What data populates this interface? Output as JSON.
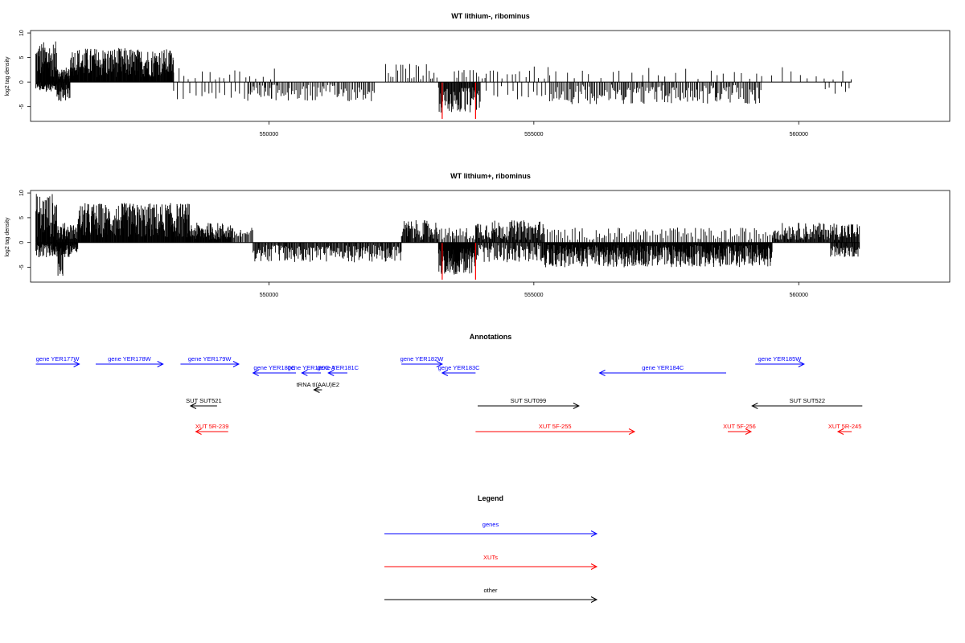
{
  "chart_data": [
    {
      "type": "bar",
      "title": "WT lithium-, ribominus",
      "ylabel": "log2 tag density",
      "xlim": [
        545500,
        562850
      ],
      "ylim": [
        -8,
        10.5
      ],
      "xticks": [
        550000,
        555000,
        560000
      ],
      "xtick_labels": [
        "550000",
        "555000",
        "560000"
      ],
      "yticks": [
        -5,
        0,
        5,
        10
      ],
      "ytick_labels": [
        "-5",
        "0",
        "5",
        "10"
      ],
      "baseline": [
        545600,
        561000
      ],
      "highlight_color": "#ff0000",
      "highlight_bars": [
        {
          "x": 553270,
          "y": -7.5
        },
        {
          "x": 553900,
          "y": -7.5
        }
      ],
      "density_regions": [
        {
          "start": 545600,
          "end": 546000,
          "sign": 1,
          "min": 1,
          "max": 8.3
        },
        {
          "start": 545600,
          "end": 546000,
          "sign": -1,
          "min": 0.3,
          "max": 2
        },
        {
          "start": 546000,
          "end": 546250,
          "sign": -1,
          "min": 0.5,
          "max": 4
        },
        {
          "start": 546000,
          "end": 546400,
          "sign": 1,
          "min": 0.5,
          "max": 3
        },
        {
          "start": 546250,
          "end": 547400,
          "sign": 1,
          "min": 1,
          "max": 7
        },
        {
          "start": 547400,
          "end": 548200,
          "sign": 1,
          "min": 1,
          "max": 6.8
        },
        {
          "start": 548200,
          "end": 550200,
          "sign": 1,
          "min": 0.5,
          "max": 3,
          "step": 110
        },
        {
          "start": 548200,
          "end": 550200,
          "sign": -1,
          "min": 0.5,
          "max": 3.5,
          "step": 90
        },
        {
          "start": 549600,
          "end": 552000,
          "sign": -1,
          "min": 0.5,
          "max": 4,
          "step": 28
        },
        {
          "start": 552200,
          "end": 553200,
          "sign": 1,
          "min": 0.5,
          "max": 3.8,
          "step": 45
        },
        {
          "start": 553200,
          "end": 554000,
          "sign": -1,
          "min": 1,
          "max": 6.5,
          "step": 12
        },
        {
          "start": 553500,
          "end": 554100,
          "sign": 1,
          "min": 0.5,
          "max": 2.5,
          "step": 50
        },
        {
          "start": 554100,
          "end": 555300,
          "sign": 1,
          "min": 0.5,
          "max": 3.2,
          "step": 90
        },
        {
          "start": 554100,
          "end": 555300,
          "sign": -1,
          "min": 0.5,
          "max": 3.5,
          "step": 110
        },
        {
          "start": 555300,
          "end": 559300,
          "sign": -1,
          "min": 0.5,
          "max": 4.5,
          "step": 24
        },
        {
          "start": 555300,
          "end": 559300,
          "sign": 1,
          "min": 0.5,
          "max": 3,
          "step": 180
        },
        {
          "start": 559300,
          "end": 561000,
          "sign": 1,
          "min": 0.5,
          "max": 3.5,
          "step": 170
        },
        {
          "start": 560500,
          "end": 561000,
          "sign": -1,
          "min": 0.5,
          "max": 2.5,
          "step": 90
        }
      ]
    },
    {
      "type": "bar",
      "title": "WT lithium+, ribominus",
      "ylabel": "log2 tag density",
      "xlim": [
        545500,
        562850
      ],
      "ylim": [
        -8,
        10.5
      ],
      "xticks": [
        550000,
        555000,
        560000
      ],
      "xtick_labels": [
        "550000",
        "555000",
        "560000"
      ],
      "yticks": [
        -5,
        0,
        5,
        10
      ],
      "ytick_labels": [
        "-5",
        "0",
        "5",
        "10"
      ],
      "baseline": [
        545600,
        561150
      ],
      "highlight_color": "#ff0000",
      "highlight_bars": [
        {
          "x": 553270,
          "y": -7.5
        },
        {
          "x": 553900,
          "y": -7.5
        }
      ],
      "density_regions": [
        {
          "start": 545600,
          "end": 546000,
          "sign": 1,
          "min": 1,
          "max": 10
        },
        {
          "start": 545600,
          "end": 546400,
          "sign": -1,
          "min": 0.3,
          "max": 3
        },
        {
          "start": 546000,
          "end": 546400,
          "sign": 1,
          "min": 0.5,
          "max": 4
        },
        {
          "start": 546000,
          "end": 546150,
          "sign": -1,
          "min": 1,
          "max": 7
        },
        {
          "start": 546400,
          "end": 548500,
          "sign": 1,
          "min": 1,
          "max": 8
        },
        {
          "start": 548500,
          "end": 549300,
          "sign": 1,
          "min": 0.5,
          "max": 4
        },
        {
          "start": 549300,
          "end": 549700,
          "sign": 1,
          "min": 0.5,
          "max": 3,
          "step": 20
        },
        {
          "start": 549700,
          "end": 552500,
          "sign": -1,
          "min": 0.5,
          "max": 4,
          "step": 14
        },
        {
          "start": 552500,
          "end": 553200,
          "sign": 1,
          "min": 0.5,
          "max": 4.5,
          "step": 12
        },
        {
          "start": 553200,
          "end": 553900,
          "sign": -1,
          "min": 1,
          "max": 6.5,
          "step": 6
        },
        {
          "start": 553200,
          "end": 553900,
          "sign": 1,
          "min": 0.5,
          "max": 3,
          "step": 25
        },
        {
          "start": 553900,
          "end": 555200,
          "sign": 1,
          "min": 0.5,
          "max": 4.5,
          "step": 12
        },
        {
          "start": 553900,
          "end": 555200,
          "sign": -1,
          "min": 0.5,
          "max": 4,
          "step": 16
        },
        {
          "start": 555200,
          "end": 559500,
          "sign": -1,
          "min": 0.5,
          "max": 5,
          "step": 8
        },
        {
          "start": 555200,
          "end": 559500,
          "sign": 1,
          "min": 0.5,
          "max": 3,
          "step": 40
        },
        {
          "start": 559500,
          "end": 561150,
          "sign": 1,
          "min": 0.5,
          "max": 4,
          "step": 12
        },
        {
          "start": 560600,
          "end": 561150,
          "sign": -1,
          "min": 0.5,
          "max": 3,
          "step": 12
        }
      ]
    }
  ],
  "annotations": {
    "title": "Annotations",
    "colors": {
      "gene": "#0000ff",
      "xut": "#ff0000",
      "other": "#000000"
    },
    "items": [
      {
        "label": "gene YER177W",
        "kind": "gene",
        "start": 545600,
        "end": 546420,
        "strand": "+",
        "row": 0
      },
      {
        "label": "gene YER178W",
        "kind": "gene",
        "start": 546730,
        "end": 548000,
        "strand": "+",
        "row": 0
      },
      {
        "label": "gene YER179W",
        "kind": "gene",
        "start": 548330,
        "end": 549430,
        "strand": "+",
        "row": 0
      },
      {
        "label": "gene YER180C",
        "kind": "gene",
        "start": 549700,
        "end": 550510,
        "strand": "-",
        "row": 1
      },
      {
        "label": "gene YER180C-A",
        "kind": "gene",
        "start": 550620,
        "end": 550980,
        "strand": "-",
        "row": 1
      },
      {
        "label": "gene YER181C",
        "kind": "gene",
        "start": 551120,
        "end": 551480,
        "strand": "-",
        "row": 1
      },
      {
        "label": "tRNA tI(AAU)E2",
        "kind": "other",
        "start": 550850,
        "end": 551000,
        "strand": "-",
        "row": 2
      },
      {
        "label": "gene YER182W",
        "kind": "gene",
        "start": 552500,
        "end": 553270,
        "strand": "+",
        "row": 0
      },
      {
        "label": "gene YER183C",
        "kind": "gene",
        "start": 553270,
        "end": 553900,
        "strand": "-",
        "row": 1
      },
      {
        "label": "gene YER184C",
        "kind": "gene",
        "start": 556240,
        "end": 558630,
        "strand": "-",
        "row": 1
      },
      {
        "label": "gene YER185W",
        "kind": "gene",
        "start": 559180,
        "end": 560100,
        "strand": "+",
        "row": 0
      },
      {
        "label": "SUT SUT521",
        "kind": "other",
        "start": 548520,
        "end": 549020,
        "strand": "-",
        "row": 3
      },
      {
        "label": "SUT SUT099",
        "kind": "other",
        "start": 553940,
        "end": 555850,
        "strand": "+",
        "row": 3
      },
      {
        "label": "SUT SUT522",
        "kind": "other",
        "start": 559120,
        "end": 561200,
        "strand": "-",
        "row": 3
      },
      {
        "label": "XUT 5R-239",
        "kind": "xut",
        "start": 548620,
        "end": 549230,
        "strand": "-",
        "row": 4
      },
      {
        "label": "XUT 5F-255",
        "kind": "xut",
        "start": 553900,
        "end": 556900,
        "strand": "+",
        "row": 4
      },
      {
        "label": "XUT 5F-256",
        "kind": "xut",
        "start": 558660,
        "end": 559100,
        "strand": "+",
        "row": 4
      },
      {
        "label": "XUT 5R-245",
        "kind": "xut",
        "start": 560740,
        "end": 561000,
        "strand": "-",
        "row": 4
      }
    ]
  },
  "legend": {
    "title": "Legend",
    "entries": [
      {
        "label": "genes",
        "color": "#0000ff"
      },
      {
        "label": "XUTs",
        "color": "#ff0000"
      },
      {
        "label": "other",
        "color": "#000000"
      }
    ]
  }
}
